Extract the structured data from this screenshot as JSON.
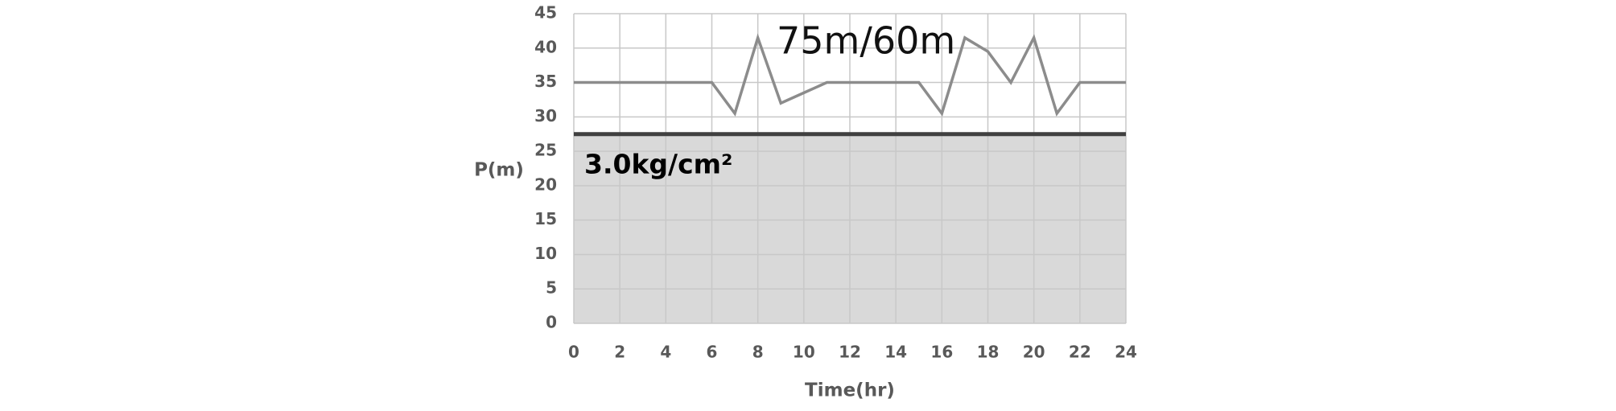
{
  "chart_data": {
    "type": "line",
    "x_label": "Time(hr)",
    "y_label": "P(m)",
    "x": [
      0,
      1,
      2,
      3,
      4,
      5,
      6,
      7,
      8,
      9,
      10,
      11,
      12,
      13,
      14,
      15,
      16,
      17,
      18,
      19,
      20,
      21,
      22,
      23,
      24
    ],
    "series": [
      {
        "color": "#8c8c8c",
        "values": [
          35,
          35,
          35,
          35,
          35,
          35,
          35,
          30.5,
          41.5,
          32,
          33.5,
          35,
          35,
          35,
          35,
          35,
          30.5,
          41.5,
          39.5,
          35,
          41.5,
          30.5,
          35,
          35,
          35
        ]
      }
    ],
    "threshold": 27.5,
    "threshold_color": "#404040",
    "shade_color": "#d9d9d9",
    "annotations": [
      "75m/60m",
      "3.0kg/cm²"
    ],
    "xlim": [
      0,
      24
    ],
    "ylim": [
      0,
      45
    ],
    "xticks": [
      0,
      2,
      4,
      6,
      8,
      10,
      12,
      14,
      16,
      18,
      20,
      22,
      24
    ],
    "yticks": [
      0,
      5,
      10,
      15,
      20,
      25,
      30,
      35,
      40,
      45
    ],
    "grid": true
  }
}
